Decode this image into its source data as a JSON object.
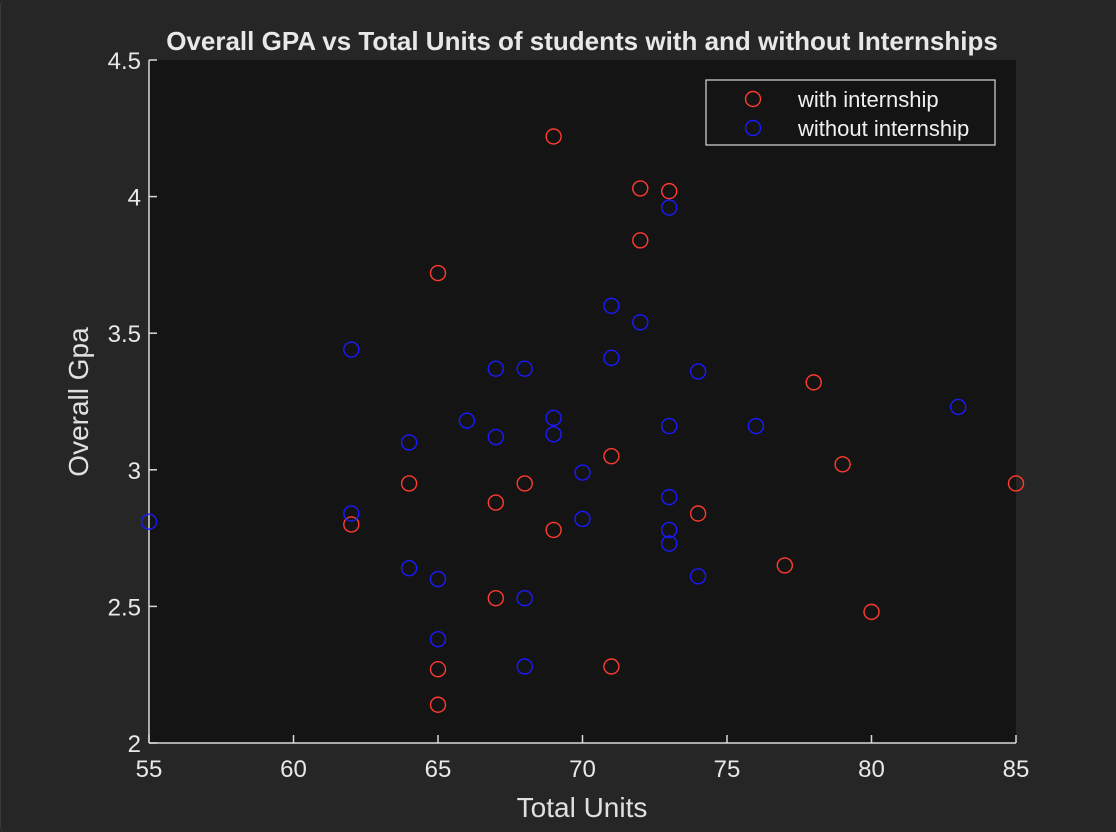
{
  "chart_data": {
    "type": "scatter",
    "title": "Overall GPA vs Total Units of students with and without Internships",
    "xlabel": "Total Units",
    "ylabel": "Overall Gpa",
    "xlim": [
      55,
      85
    ],
    "ylim": [
      2,
      4.5
    ],
    "xticks": [
      "55",
      "60",
      "65",
      "70",
      "75",
      "80",
      "85"
    ],
    "yticks": [
      "2",
      "2.5",
      "3",
      "3.5",
      "4",
      "4.5"
    ],
    "grid": false,
    "legend_position": "top-right",
    "series": [
      {
        "name": "with internship",
        "color": "#ff3b2f",
        "marker": "circle-open",
        "points": [
          [
            69,
            4.22
          ],
          [
            72,
            4.03
          ],
          [
            73,
            4.02
          ],
          [
            72,
            3.84
          ],
          [
            65,
            3.72
          ],
          [
            78,
            3.32
          ],
          [
            71,
            3.05
          ],
          [
            79,
            3.02
          ],
          [
            64,
            2.95
          ],
          [
            68,
            2.95
          ],
          [
            85,
            2.95
          ],
          [
            67,
            2.88
          ],
          [
            74,
            2.84
          ],
          [
            62,
            2.8
          ],
          [
            69,
            2.78
          ],
          [
            77,
            2.65
          ],
          [
            67,
            2.53
          ],
          [
            80,
            2.48
          ],
          [
            65,
            2.27
          ],
          [
            71,
            2.28
          ],
          [
            65,
            2.14
          ]
        ]
      },
      {
        "name": "without internship",
        "color": "#1a1aff",
        "marker": "circle-open",
        "points": [
          [
            73,
            3.96
          ],
          [
            71,
            3.6
          ],
          [
            72,
            3.54
          ],
          [
            62,
            3.44
          ],
          [
            71,
            3.41
          ],
          [
            67,
            3.37
          ],
          [
            68,
            3.37
          ],
          [
            74,
            3.36
          ],
          [
            83,
            3.23
          ],
          [
            69,
            3.19
          ],
          [
            66,
            3.18
          ],
          [
            73,
            3.16
          ],
          [
            76,
            3.16
          ],
          [
            69,
            3.13
          ],
          [
            67,
            3.12
          ],
          [
            64,
            3.1
          ],
          [
            70,
            2.99
          ],
          [
            73,
            2.9
          ],
          [
            62,
            2.84
          ],
          [
            55,
            2.81
          ],
          [
            70,
            2.82
          ],
          [
            73,
            2.78
          ],
          [
            73,
            2.73
          ],
          [
            64,
            2.64
          ],
          [
            74,
            2.61
          ],
          [
            65,
            2.6
          ],
          [
            68,
            2.53
          ],
          [
            65,
            2.38
          ],
          [
            68,
            2.28
          ]
        ]
      }
    ]
  }
}
